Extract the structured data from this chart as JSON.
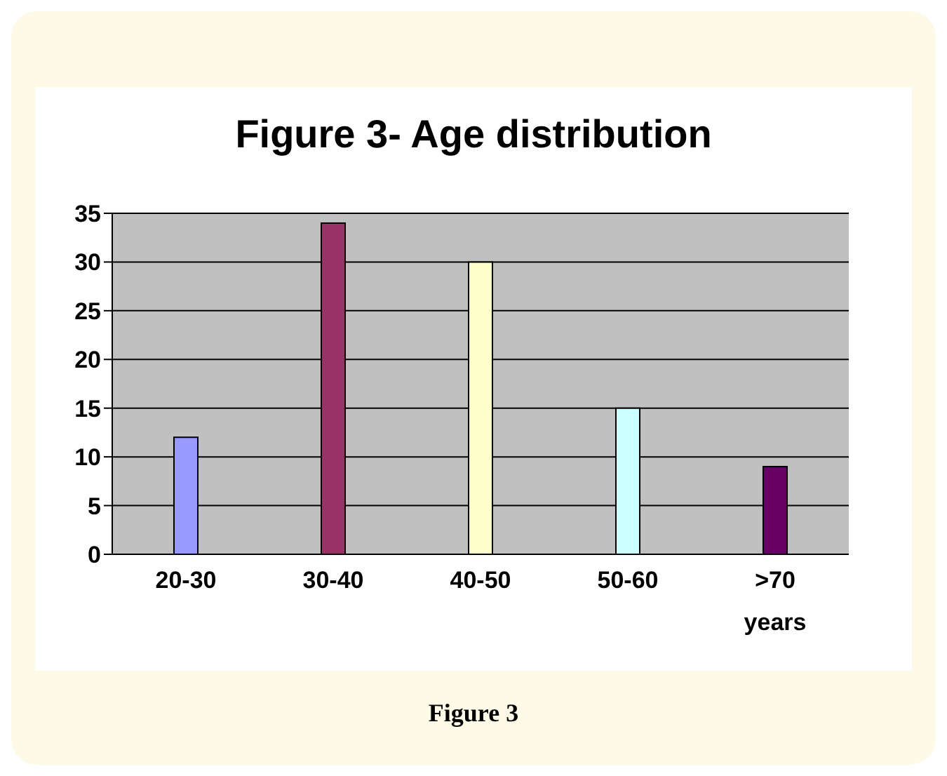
{
  "chart_data": {
    "type": "bar",
    "title": "Figure 3- Age distribution",
    "categories": [
      "20-30",
      "30-40",
      "40-50",
      "50-60",
      ">70 years"
    ],
    "values": [
      12,
      34,
      30,
      15,
      9
    ],
    "colors": [
      "#9999ff",
      "#993366",
      "#ffffcc",
      "#ccffff",
      "#660066"
    ],
    "ylim": [
      0,
      35
    ],
    "yticks": [
      0,
      5,
      10,
      15,
      20,
      25,
      30,
      35
    ],
    "grid": "y",
    "annotations": [
      "Figure 3"
    ]
  }
}
